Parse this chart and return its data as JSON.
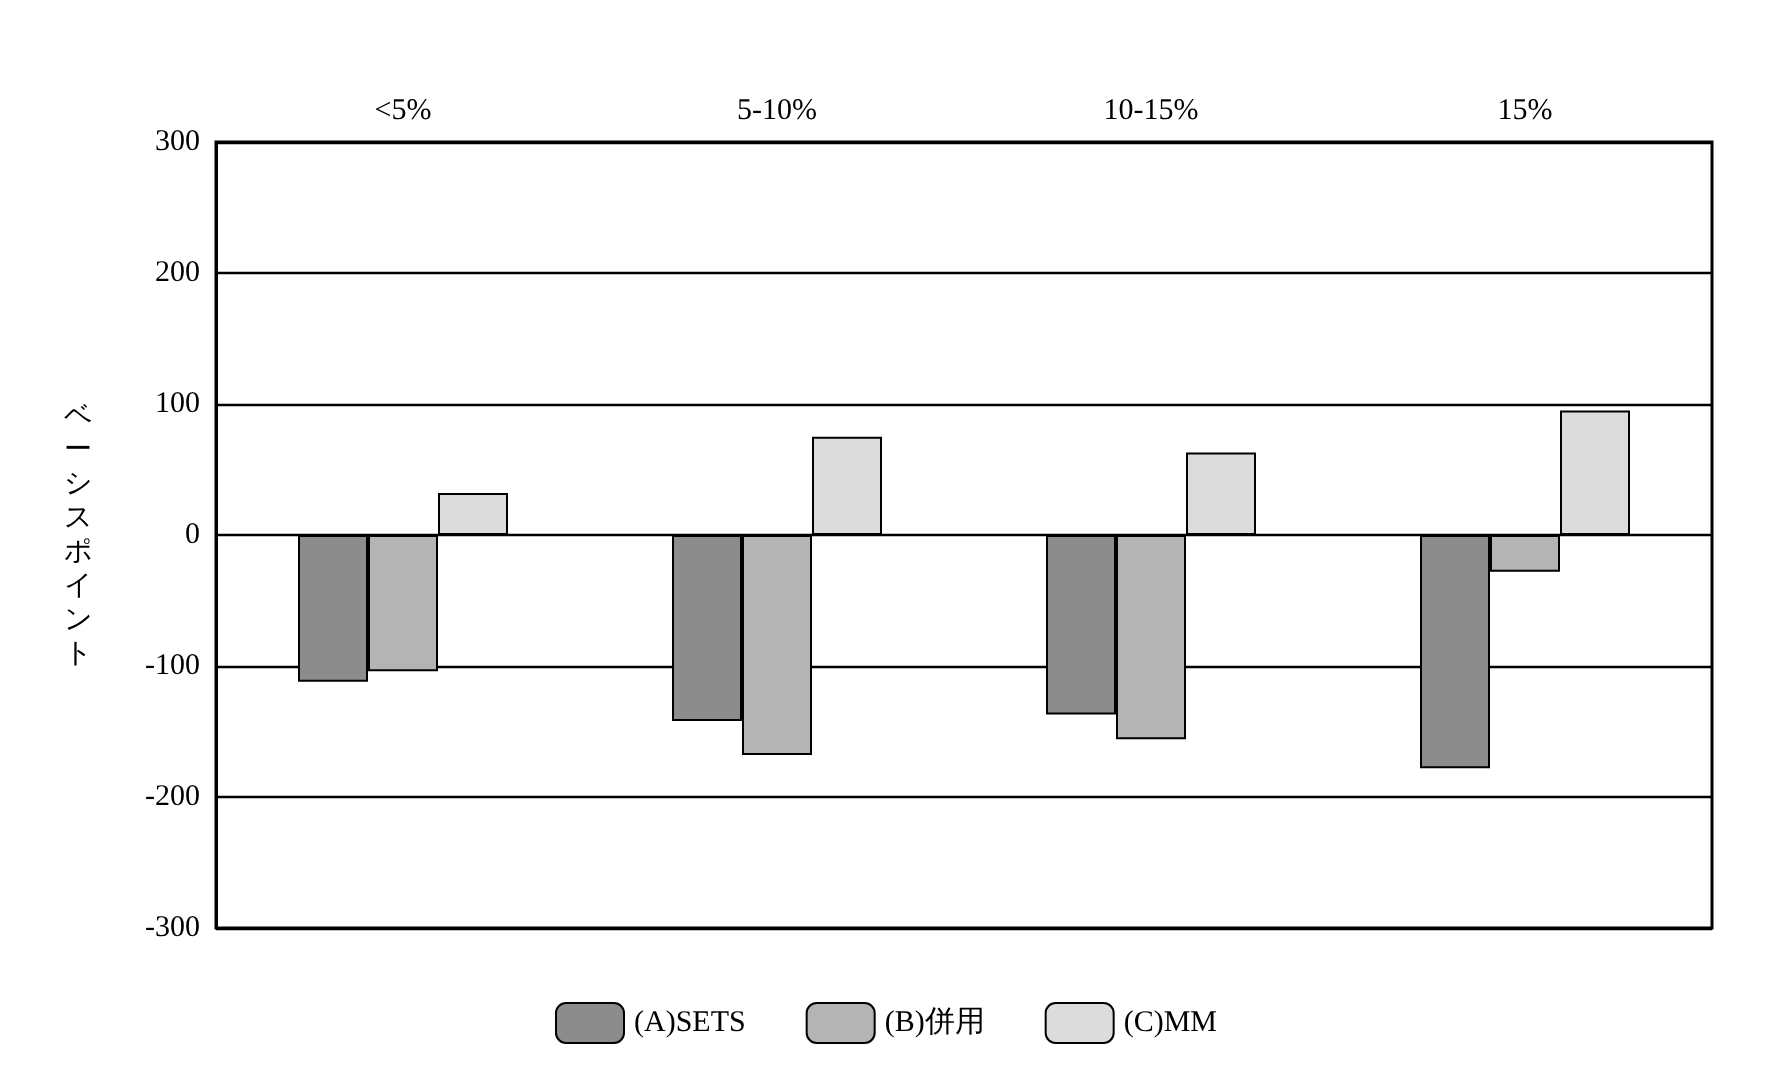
{
  "chart_data": {
    "type": "bar",
    "ylabel": "ベーシスポイント",
    "categories": [
      "<5%",
      "5-10%",
      "10-15%",
      "15%"
    ],
    "series": [
      {
        "name": "(A)SETS",
        "color": "#8c8c8c",
        "values": [
          -112,
          -142,
          -137,
          -178
        ]
      },
      {
        "name": "(B)併用",
        "color": "#b4b4b4",
        "values": [
          -104,
          -168,
          -156,
          -28
        ]
      },
      {
        "name": "(C)MM",
        "color": "#dcdcdc",
        "values": [
          32,
          75,
          63,
          95
        ]
      }
    ],
    "ylim": [
      -300,
      300
    ],
    "yticks": [
      -300,
      -200,
      -100,
      0,
      100,
      200,
      300
    ],
    "grid": "y",
    "legend": "bottom"
  }
}
